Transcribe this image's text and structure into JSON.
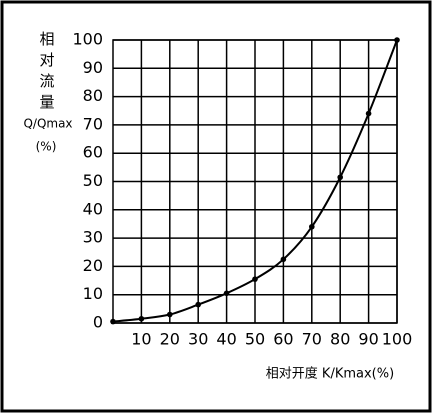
{
  "chart_data": {
    "type": "line",
    "y_label": "相对流量",
    "y_label_symbol": "Q/Qmax",
    "y_label_unit": "(%)",
    "x_label": "相对开度 K/Kmax(%)",
    "x": [
      0,
      10,
      20,
      30,
      40,
      50,
      60,
      70,
      80,
      90,
      100
    ],
    "series": [
      {
        "color": "#000000",
        "values": [
          0.5,
          1.5,
          3,
          6.5,
          10.5,
          15.5,
          22.5,
          34,
          51.5,
          74,
          100
        ]
      }
    ],
    "xlim": [
      0,
      100
    ],
    "ylim": [
      0,
      100
    ],
    "xticks": [
      10,
      20,
      30,
      40,
      50,
      60,
      70,
      80,
      90,
      100
    ],
    "yticks": [
      0,
      10,
      20,
      30,
      40,
      50,
      60,
      70,
      80,
      90,
      100
    ],
    "grid": true
  }
}
